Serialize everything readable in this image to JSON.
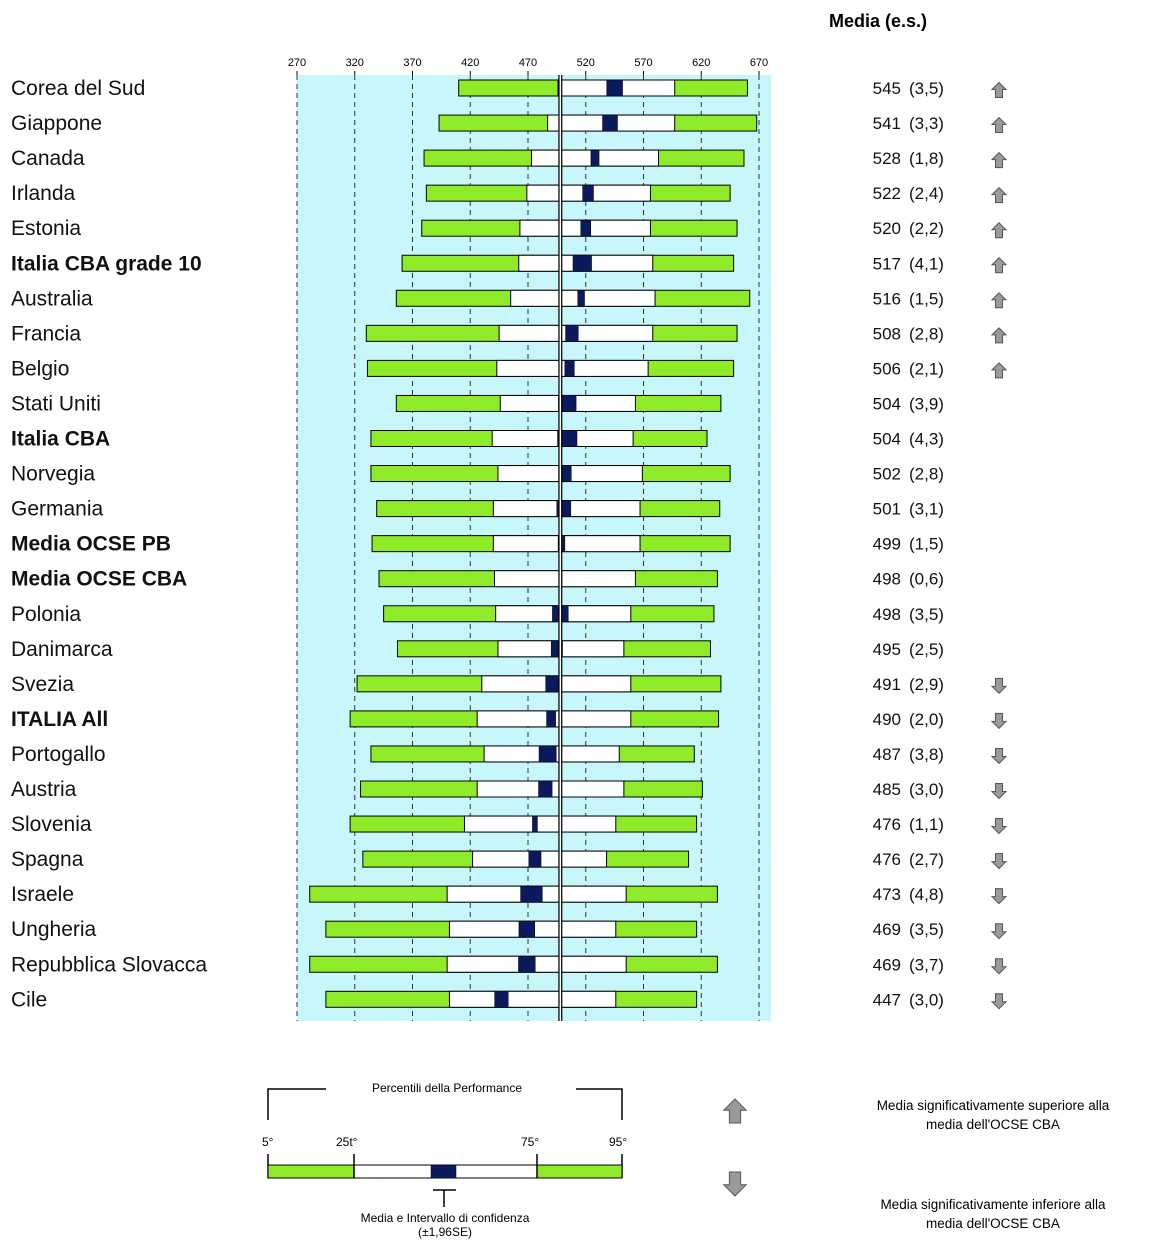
{
  "chart_data": {
    "type": "bar",
    "subtype": "percentile-range",
    "column_header": "Media (e.s.)",
    "x_ticks": [
      "270",
      "320",
      "370",
      "420",
      "470",
      "520",
      "570",
      "620",
      "670"
    ],
    "xlim": [
      270,
      670
    ],
    "reference_line": 498,
    "colors": {
      "outer_band": "#8fea2a",
      "inner_band": "#ffffff",
      "ci_box": "#0b1a5c",
      "plot_bg": "#c8f7fb",
      "arrow": "#9a9a9a"
    },
    "rows": [
      {
        "label": "Corea del Sud",
        "bold": false,
        "p5": 410,
        "p25": 496,
        "p75": 597,
        "p95": 660,
        "mean": 545,
        "mean_text": "545",
        "se_text": "(3,5)",
        "sig": "up"
      },
      {
        "label": "Giappone",
        "bold": false,
        "p5": 393,
        "p25": 487,
        "p75": 597,
        "p95": 668,
        "mean": 541,
        "mean_text": "541",
        "se_text": "(3,3)",
        "sig": "up"
      },
      {
        "label": "Canada",
        "bold": false,
        "p5": 380,
        "p25": 473,
        "p75": 583,
        "p95": 657,
        "mean": 528,
        "mean_text": "528",
        "se_text": "(1,8)",
        "sig": "up"
      },
      {
        "label": "Irlanda",
        "bold": false,
        "p5": 382,
        "p25": 469,
        "p75": 576,
        "p95": 645,
        "mean": 522,
        "mean_text": "522",
        "se_text": "(2,4)",
        "sig": "up"
      },
      {
        "label": "Estonia",
        "bold": false,
        "p5": 378,
        "p25": 463,
        "p75": 576,
        "p95": 651,
        "mean": 520,
        "mean_text": "520",
        "se_text": "(2,2)",
        "sig": "up"
      },
      {
        "label": "Italia CBA grade 10",
        "bold": true,
        "p5": 361,
        "p25": 462,
        "p75": 578,
        "p95": 648,
        "mean": 517,
        "mean_text": "517",
        "se_text": "(4,1)",
        "sig": "up"
      },
      {
        "label": "Australia",
        "bold": false,
        "p5": 356,
        "p25": 455,
        "p75": 580,
        "p95": 662,
        "mean": 516,
        "mean_text": "516",
        "se_text": "(1,5)",
        "sig": "up"
      },
      {
        "label": "Francia",
        "bold": false,
        "p5": 330,
        "p25": 445,
        "p75": 578,
        "p95": 651,
        "mean": 508,
        "mean_text": "508",
        "se_text": "(2,8)",
        "sig": "up"
      },
      {
        "label": "Belgio",
        "bold": false,
        "p5": 331,
        "p25": 443,
        "p75": 574,
        "p95": 648,
        "mean": 506,
        "mean_text": "506",
        "se_text": "(2,1)",
        "sig": "up"
      },
      {
        "label": "Stati Uniti",
        "bold": false,
        "p5": 356,
        "p25": 446,
        "p75": 563,
        "p95": 637,
        "mean": 504,
        "mean_text": "504",
        "se_text": "(3,9)",
        "sig": ""
      },
      {
        "label": "Italia CBA",
        "bold": true,
        "p5": 334,
        "p25": 439,
        "p75": 561,
        "p95": 625,
        "mean": 504,
        "mean_text": "504",
        "se_text": "(4,3)",
        "sig": ""
      },
      {
        "label": "Norvegia",
        "bold": false,
        "p5": 334,
        "p25": 444,
        "p75": 569,
        "p95": 645,
        "mean": 502,
        "mean_text": "502",
        "se_text": "(2,8)",
        "sig": ""
      },
      {
        "label": "Germania",
        "bold": false,
        "p5": 339,
        "p25": 440,
        "p75": 567,
        "p95": 636,
        "mean": 501,
        "mean_text": "501",
        "se_text": "(3,1)",
        "sig": ""
      },
      {
        "label": "Media OCSE PB",
        "bold": true,
        "p5": 335,
        "p25": 440,
        "p75": 567,
        "p95": 645,
        "mean": 499,
        "mean_text": "499",
        "se_text": "(1,5)",
        "sig": ""
      },
      {
        "label": "Media OCSE CBA",
        "bold": true,
        "p5": 341,
        "p25": 441,
        "p75": 563,
        "p95": 634,
        "mean": 498,
        "mean_text": "498",
        "se_text": "(0,6)",
        "sig": ""
      },
      {
        "label": "Polonia",
        "bold": false,
        "p5": 345,
        "p25": 442,
        "p75": 559,
        "p95": 631,
        "mean": 498,
        "mean_text": "498",
        "se_text": "(3,5)",
        "sig": ""
      },
      {
        "label": "Danimarca",
        "bold": false,
        "p5": 357,
        "p25": 444,
        "p75": 553,
        "p95": 628,
        "mean": 495,
        "mean_text": "495",
        "se_text": "(2,5)",
        "sig": ""
      },
      {
        "label": "Svezia",
        "bold": false,
        "p5": 322,
        "p25": 430,
        "p75": 559,
        "p95": 637,
        "mean": 491,
        "mean_text": "491",
        "se_text": "(2,9)",
        "sig": "down"
      },
      {
        "label": "ITALIA All",
        "bold": true,
        "p5": 316,
        "p25": 426,
        "p75": 559,
        "p95": 635,
        "mean": 490,
        "mean_text": "490",
        "se_text": "(2,0)",
        "sig": "down"
      },
      {
        "label": "Portogallo",
        "bold": false,
        "p5": 334,
        "p25": 432,
        "p75": 549,
        "p95": 614,
        "mean": 487,
        "mean_text": "487",
        "se_text": "(3,8)",
        "sig": "down"
      },
      {
        "label": "Austria",
        "bold": false,
        "p5": 325,
        "p25": 426,
        "p75": 553,
        "p95": 621,
        "mean": 485,
        "mean_text": "485",
        "se_text": "(3,0)",
        "sig": "down"
      },
      {
        "label": "Slovenia",
        "bold": false,
        "p5": 316,
        "p25": 415,
        "p75": 546,
        "p95": 616,
        "mean": 476,
        "mean_text": "476",
        "se_text": "(1,1)",
        "sig": "down"
      },
      {
        "label": "Spagna",
        "bold": false,
        "p5": 327,
        "p25": 422,
        "p75": 538,
        "p95": 609,
        "mean": 476,
        "mean_text": "476",
        "se_text": "(2,7)",
        "sig": "down"
      },
      {
        "label": "Israele",
        "bold": false,
        "p5": 281,
        "p25": 400,
        "p75": 555,
        "p95": 634,
        "mean": 473,
        "mean_text": "473",
        "se_text": "(4,8)",
        "sig": "down"
      },
      {
        "label": "Ungheria",
        "bold": false,
        "p5": 295,
        "p25": 402,
        "p75": 546,
        "p95": 616,
        "mean": 469,
        "mean_text": "469",
        "se_text": "(3,5)",
        "sig": "down"
      },
      {
        "label": "Repubblica Slovacca",
        "bold": false,
        "p5": 281,
        "p25": 400,
        "p75": 555,
        "p95": 634,
        "mean": 469,
        "mean_text": "469",
        "se_text": "(3,7)",
        "sig": "down"
      },
      {
        "label": "Cile",
        "bold": false,
        "p5": 295,
        "p25": 402,
        "p75": 546,
        "p95": 616,
        "mean": 447,
        "mean_text": "447",
        "se_text": "(3,0)",
        "sig": "down"
      }
    ],
    "legend": {
      "bracket_title": "Percentili della Performance",
      "p5_label": "5°",
      "p25_label": "25t°",
      "p75_label": "75°",
      "p95_label": "95°",
      "ci_label_line1": "Media e Intervallo di confidenza",
      "ci_label_line2": "(±1,96SE)",
      "up_text_line1": "Media significativamente superiore alla",
      "up_text_line2": "media dell'OCSE CBA",
      "down_text_line1": "Media significativamente inferiore alla",
      "down_text_line2": "media dell'OCSE CBA"
    }
  }
}
